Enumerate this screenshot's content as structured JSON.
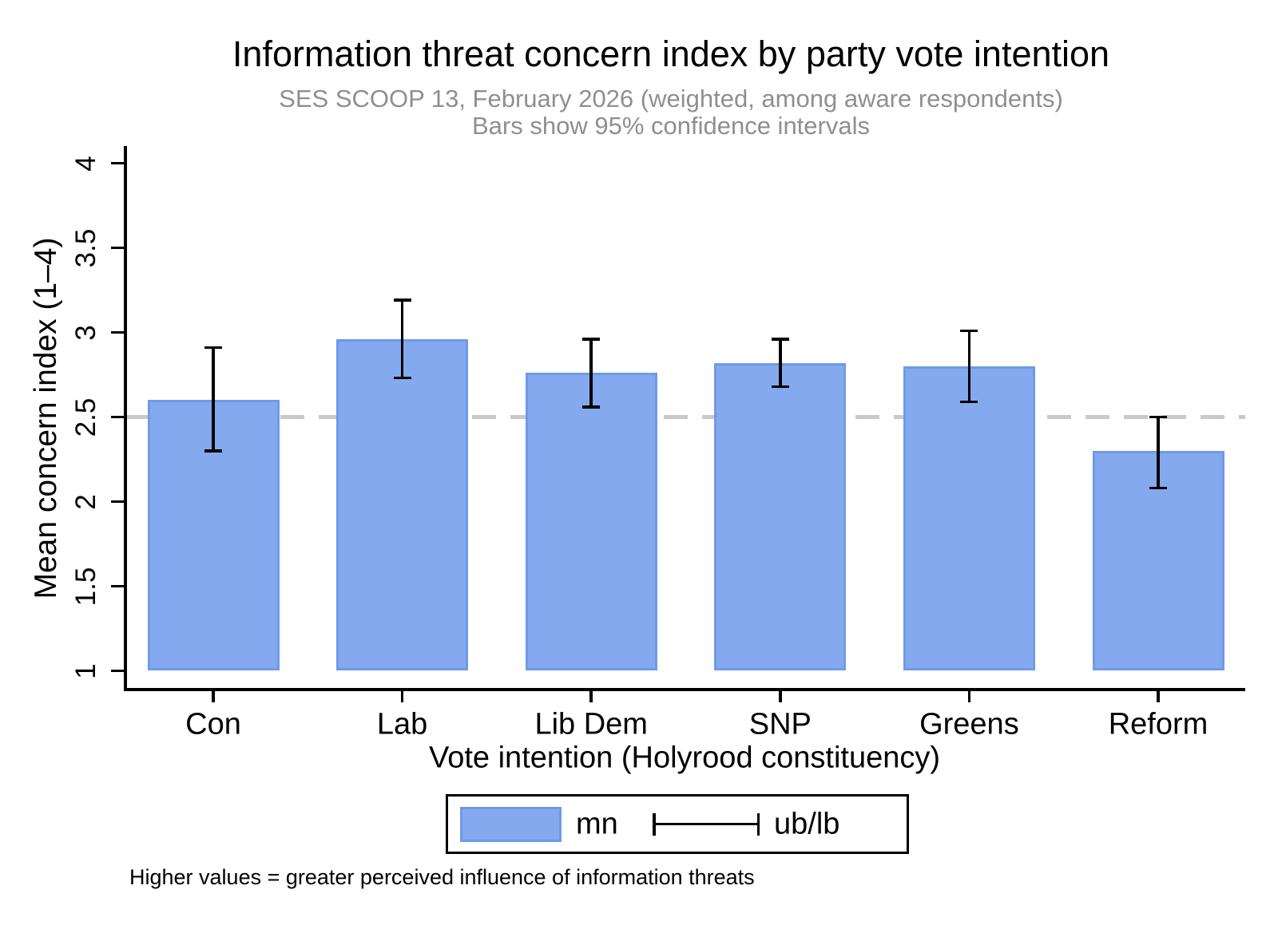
{
  "chart_data": {
    "type": "bar",
    "title": "Information threat concern index by party vote intention",
    "subtitle1": "SES SCOOP 13, February 2026 (weighted, among aware respondents)",
    "subtitle2": "Bars show 95% confidence intervals",
    "xlabel": "Vote intention (Holyrood constituency)",
    "ylabel": "Mean concern index (1–4)",
    "note": "Higher values = greater perceived influence of information threats",
    "categories": [
      "Con",
      "Lab",
      "Lib Dem",
      "SNP",
      "Greens",
      "Reform"
    ],
    "series": [
      {
        "name": "mn",
        "values": [
          2.6,
          2.96,
          2.76,
          2.82,
          2.8,
          2.3
        ]
      },
      {
        "name": "ub/lb",
        "upper": [
          2.91,
          3.19,
          2.96,
          2.96,
          3.01,
          2.5
        ],
        "lower": [
          2.3,
          2.73,
          2.56,
          2.68,
          2.59,
          2.08
        ]
      }
    ],
    "ylim": [
      1,
      4
    ],
    "yticks": [
      1,
      1.5,
      2,
      2.5,
      3,
      3.5,
      4
    ],
    "ytick_labels": [
      "1",
      "1.5",
      "2",
      "2.5",
      "3",
      "3.5",
      "4"
    ],
    "refline": 2.5,
    "grid": false,
    "legend": {
      "position": "bottom",
      "entries": [
        "mn",
        "ub/lb"
      ]
    },
    "colors": {
      "bar_fill": "#85a9ee",
      "bar_border": "#6f9ae8",
      "errorbar": "#000000",
      "refline": "#c9c9c9",
      "subtitle": "#8f8f8f",
      "axis": "#000000"
    }
  }
}
